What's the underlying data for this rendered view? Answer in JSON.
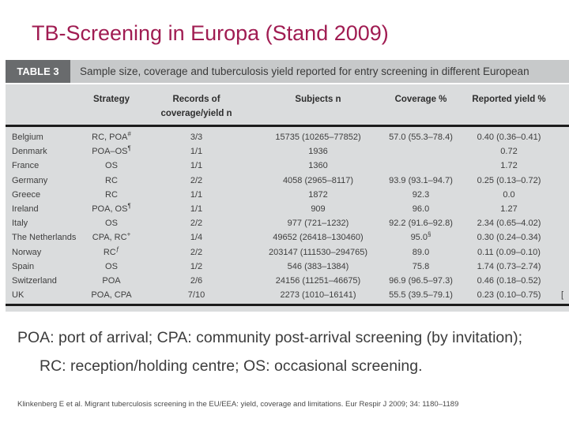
{
  "slide": {
    "title": "TB-Screening in Europa (Stand 2009)",
    "title_color": "#A01C52",
    "abbreviations": "POA: port of arrival; CPA: community post-arrival screening (by invitation); RC: reception/holding centre; OS: occasional screening.",
    "citation": "Klinkenberg E et al. Migrant tuberculosis screening in the EU/EEA: yield, coverage and limitations. Eur Respir J 2009; 34: 1180–1189"
  },
  "table": {
    "label": "TABLE 3",
    "caption": "Sample size, coverage and tuberculosis yield reported for entry screening in different European",
    "colors": {
      "label_bg": "#696B6D",
      "caption_bg": "#C7C9CA",
      "body_bg": "#DADCDD",
      "rule": "#1C1C1C"
    },
    "columns": {
      "strategy": "Strategy",
      "records_line1": "Records of",
      "records_line2": "coverage/yield n",
      "subjects": "Subjects n",
      "coverage": "Coverage %",
      "yield": "Reported yield %"
    },
    "rows": [
      {
        "country": "Belgium",
        "strategy": "RC, POA",
        "strategy_sup": "#",
        "records": "3/3",
        "subjects": "15735 (10265–77852)",
        "coverage": "57.0 (55.3–78.4)",
        "coverage_sup": "",
        "yield": "0.40 (0.36–0.41)",
        "ref": ""
      },
      {
        "country": "Denmark",
        "strategy": "POA–OS",
        "strategy_sup": "¶",
        "records": "1/1",
        "subjects": "1936",
        "coverage": "",
        "coverage_sup": "",
        "yield": "0.72",
        "ref": ""
      },
      {
        "country": "France",
        "strategy": "OS",
        "strategy_sup": "",
        "records": "1/1",
        "subjects": "1360",
        "coverage": "",
        "coverage_sup": "",
        "yield": "1.72",
        "ref": ""
      },
      {
        "country": "Germany",
        "strategy": "RC",
        "strategy_sup": "",
        "records": "2/2",
        "subjects": "4058 (2965–8117)",
        "coverage": "93.9 (93.1–94.7)",
        "coverage_sup": "",
        "yield": "0.25 (0.13–0.72)",
        "ref": ""
      },
      {
        "country": "Greece",
        "strategy": "RC",
        "strategy_sup": "",
        "records": "1/1",
        "subjects": "1872",
        "coverage": "92.3",
        "coverage_sup": "",
        "yield": "0.0",
        "ref": ""
      },
      {
        "country": "Ireland",
        "strategy": "POA, OS",
        "strategy_sup": "¶",
        "records": "1/1",
        "subjects": "909",
        "coverage": "96.0",
        "coverage_sup": "",
        "yield": "1.27",
        "ref": ""
      },
      {
        "country": "Italy",
        "strategy": "OS",
        "strategy_sup": "",
        "records": "2/2",
        "subjects": "977 (721–1232)",
        "coverage": "92.2 (91.6–92.8)",
        "coverage_sup": "",
        "yield": "2.34 (0.65–4.02)",
        "ref": ""
      },
      {
        "country": "The Netherlands",
        "strategy": "CPA, RC",
        "strategy_sup": "+",
        "records": "1/4",
        "subjects": "49652 (26418–130460)",
        "coverage": "95.0",
        "coverage_sup": "§",
        "yield": "0.30 (0.24–0.34)",
        "ref": ""
      },
      {
        "country": "Norway",
        "strategy": "RC",
        "strategy_sup": "ƒ",
        "records": "2/2",
        "subjects": "203147 (111530–294765)",
        "coverage": "89.0",
        "coverage_sup": "",
        "yield": "0.11 (0.09–0.10)",
        "ref": ""
      },
      {
        "country": "Spain",
        "strategy": "OS",
        "strategy_sup": "",
        "records": "1/2",
        "subjects": "546 (383–1384)",
        "coverage": "75.8",
        "coverage_sup": "",
        "yield": "1.74 (0.73–2.74)",
        "ref": ""
      },
      {
        "country": "Switzerland",
        "strategy": "POA",
        "strategy_sup": "",
        "records": "2/6",
        "subjects": "24156 (11251–46675)",
        "coverage": "96.9 (96.5–97.3)",
        "coverage_sup": "",
        "yield": "0.46 (0.18–0.52)",
        "ref": ""
      },
      {
        "country": "UK",
        "strategy": "POA, CPA",
        "strategy_sup": "",
        "records": "7/10",
        "subjects": "2273 (1010–16141)",
        "coverage": "55.5 (39.5–79.1)",
        "coverage_sup": "",
        "yield": "0.23 (0.10–0.75)",
        "ref": "["
      }
    ]
  }
}
